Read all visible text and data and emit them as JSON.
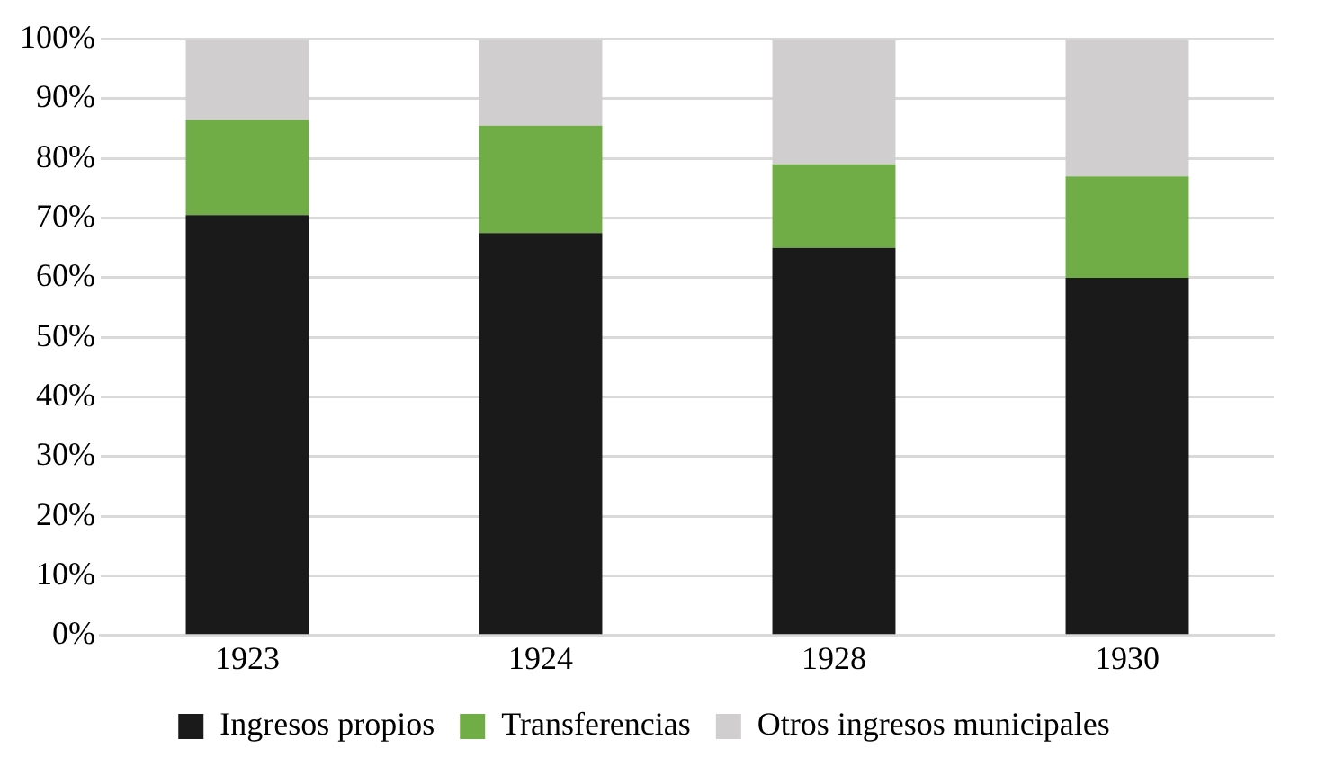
{
  "chart_data": {
    "type": "bar",
    "stacked": true,
    "categories": [
      "1923",
      "1924",
      "1928",
      "1930"
    ],
    "series": [
      {
        "name": "Ingresos propios",
        "color": "#1a1a1a",
        "values": [
          70.5,
          67.5,
          65,
          60
        ]
      },
      {
        "name": "Transferencias",
        "color": "#70ad47",
        "values": [
          16,
          18,
          14,
          17
        ]
      },
      {
        "name": "Otros ingresos municipales",
        "color": "#d0cece",
        "values": [
          13.5,
          14.5,
          21,
          23
        ]
      }
    ],
    "ylim": [
      0,
      100
    ],
    "yticks": [
      {
        "value": 0,
        "label": "0%"
      },
      {
        "value": 10,
        "label": "10%"
      },
      {
        "value": 20,
        "label": "20%"
      },
      {
        "value": 30,
        "label": "30%"
      },
      {
        "value": 40,
        "label": "40%"
      },
      {
        "value": 50,
        "label": "50%"
      },
      {
        "value": 60,
        "label": "60%"
      },
      {
        "value": 70,
        "label": "70%"
      },
      {
        "value": 80,
        "label": "80%"
      },
      {
        "value": 90,
        "label": "90%"
      },
      {
        "value": 100,
        "label": "100%"
      }
    ],
    "grid": "y",
    "legend": "bottom"
  }
}
